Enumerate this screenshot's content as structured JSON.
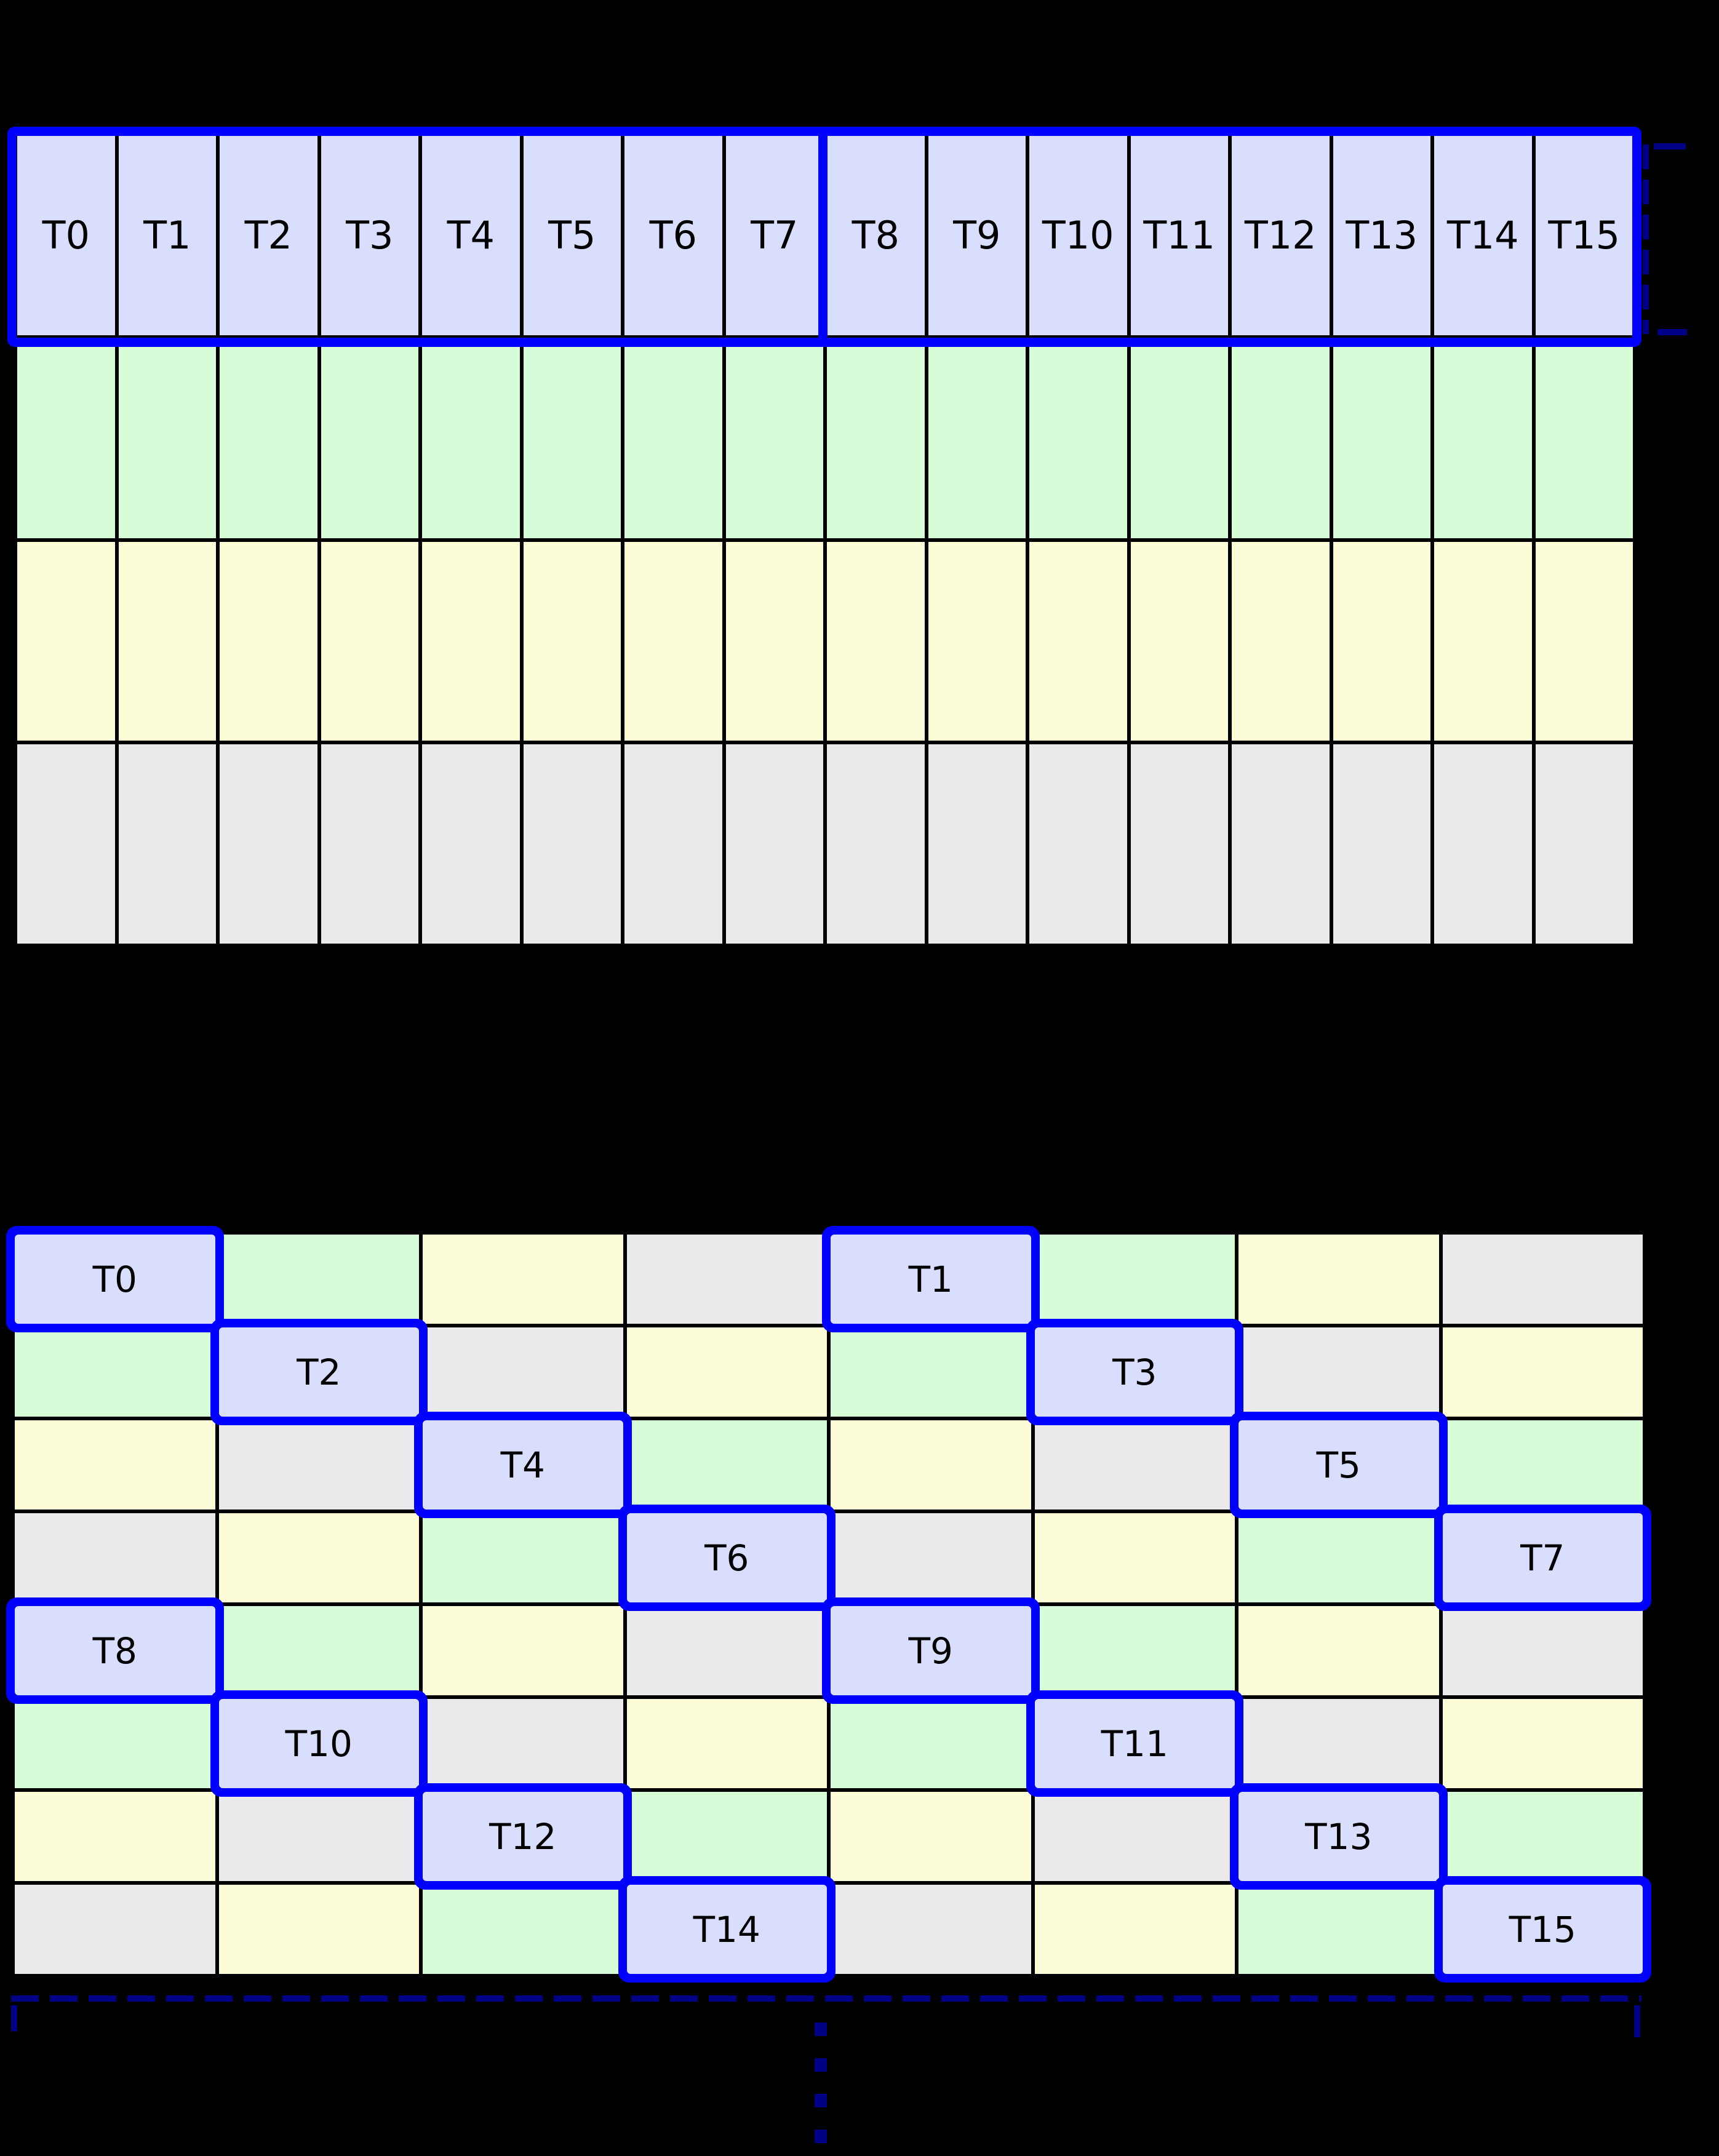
{
  "palette": {
    "background": "#000000",
    "grid_line": "#000000",
    "thread_fill": "#D8DEFB",
    "bank_green": "#D7FCD8",
    "bank_yellow": "#FCFDD7",
    "bank_gray": "#EAEAEC",
    "highlight_outline": "#0000FE",
    "bracket_navy": "#000087",
    "label_color": "#000000"
  },
  "top_grid": {
    "columns": 16,
    "rows": 4,
    "thread_labels": [
      "T0",
      "T1",
      "T2",
      "T3",
      "T4",
      "T5",
      "T6",
      "T7",
      "T8",
      "T9",
      "T10",
      "T11",
      "T12",
      "T13",
      "T14",
      "T15"
    ],
    "row_fills": [
      "thread_fill",
      "bank_green",
      "bank_yellow",
      "bank_gray"
    ],
    "half_warp_divider_after_column": 8
  },
  "bottom_grid": {
    "rows": 8,
    "columns": 8,
    "cells": [
      [
        {
          "fill": "thread_fill",
          "label": "T0",
          "highlight": true
        },
        {
          "fill": "bank_green",
          "label": "",
          "highlight": false
        },
        {
          "fill": "bank_yellow",
          "label": "",
          "highlight": false
        },
        {
          "fill": "bank_gray",
          "label": "",
          "highlight": false
        },
        {
          "fill": "thread_fill",
          "label": "T1",
          "highlight": true
        },
        {
          "fill": "bank_green",
          "label": "",
          "highlight": false
        },
        {
          "fill": "bank_yellow",
          "label": "",
          "highlight": false
        },
        {
          "fill": "bank_gray",
          "label": "",
          "highlight": false
        }
      ],
      [
        {
          "fill": "bank_green",
          "label": "",
          "highlight": false
        },
        {
          "fill": "thread_fill",
          "label": "T2",
          "highlight": true
        },
        {
          "fill": "bank_gray",
          "label": "",
          "highlight": false
        },
        {
          "fill": "bank_yellow",
          "label": "",
          "highlight": false
        },
        {
          "fill": "bank_green",
          "label": "",
          "highlight": false
        },
        {
          "fill": "thread_fill",
          "label": "T3",
          "highlight": true
        },
        {
          "fill": "bank_gray",
          "label": "",
          "highlight": false
        },
        {
          "fill": "bank_yellow",
          "label": "",
          "highlight": false
        }
      ],
      [
        {
          "fill": "bank_yellow",
          "label": "",
          "highlight": false
        },
        {
          "fill": "bank_gray",
          "label": "",
          "highlight": false
        },
        {
          "fill": "thread_fill",
          "label": "T4",
          "highlight": true
        },
        {
          "fill": "bank_green",
          "label": "",
          "highlight": false
        },
        {
          "fill": "bank_yellow",
          "label": "",
          "highlight": false
        },
        {
          "fill": "bank_gray",
          "label": "",
          "highlight": false
        },
        {
          "fill": "thread_fill",
          "label": "T5",
          "highlight": true
        },
        {
          "fill": "bank_green",
          "label": "",
          "highlight": false
        }
      ],
      [
        {
          "fill": "bank_gray",
          "label": "",
          "highlight": false
        },
        {
          "fill": "bank_yellow",
          "label": "",
          "highlight": false
        },
        {
          "fill": "bank_green",
          "label": "",
          "highlight": false
        },
        {
          "fill": "thread_fill",
          "label": "T6",
          "highlight": true
        },
        {
          "fill": "bank_gray",
          "label": "",
          "highlight": false
        },
        {
          "fill": "bank_yellow",
          "label": "",
          "highlight": false
        },
        {
          "fill": "bank_green",
          "label": "",
          "highlight": false
        },
        {
          "fill": "thread_fill",
          "label": "T7",
          "highlight": true
        }
      ],
      [
        {
          "fill": "thread_fill",
          "label": "T8",
          "highlight": true
        },
        {
          "fill": "bank_green",
          "label": "",
          "highlight": false
        },
        {
          "fill": "bank_yellow",
          "label": "",
          "highlight": false
        },
        {
          "fill": "bank_gray",
          "label": "",
          "highlight": false
        },
        {
          "fill": "thread_fill",
          "label": "T9",
          "highlight": true
        },
        {
          "fill": "bank_green",
          "label": "",
          "highlight": false
        },
        {
          "fill": "bank_yellow",
          "label": "",
          "highlight": false
        },
        {
          "fill": "bank_gray",
          "label": "",
          "highlight": false
        }
      ],
      [
        {
          "fill": "bank_green",
          "label": "",
          "highlight": false
        },
        {
          "fill": "thread_fill",
          "label": "T10",
          "highlight": true
        },
        {
          "fill": "bank_gray",
          "label": "",
          "highlight": false
        },
        {
          "fill": "bank_yellow",
          "label": "",
          "highlight": false
        },
        {
          "fill": "bank_green",
          "label": "",
          "highlight": false
        },
        {
          "fill": "thread_fill",
          "label": "T11",
          "highlight": true
        },
        {
          "fill": "bank_gray",
          "label": "",
          "highlight": false
        },
        {
          "fill": "bank_yellow",
          "label": "",
          "highlight": false
        }
      ],
      [
        {
          "fill": "bank_yellow",
          "label": "",
          "highlight": false
        },
        {
          "fill": "bank_gray",
          "label": "",
          "highlight": false
        },
        {
          "fill": "thread_fill",
          "label": "T12",
          "highlight": true
        },
        {
          "fill": "bank_green",
          "label": "",
          "highlight": false
        },
        {
          "fill": "bank_yellow",
          "label": "",
          "highlight": false
        },
        {
          "fill": "bank_gray",
          "label": "",
          "highlight": false
        },
        {
          "fill": "thread_fill",
          "label": "T13",
          "highlight": true
        },
        {
          "fill": "bank_green",
          "label": "",
          "highlight": false
        }
      ],
      [
        {
          "fill": "bank_gray",
          "label": "",
          "highlight": false
        },
        {
          "fill": "bank_yellow",
          "label": "",
          "highlight": false
        },
        {
          "fill": "bank_green",
          "label": "",
          "highlight": false
        },
        {
          "fill": "thread_fill",
          "label": "T14",
          "highlight": true
        },
        {
          "fill": "bank_gray",
          "label": "",
          "highlight": false
        },
        {
          "fill": "bank_yellow",
          "label": "",
          "highlight": false
        },
        {
          "fill": "bank_green",
          "label": "",
          "highlight": false
        },
        {
          "fill": "thread_fill",
          "label": "T15",
          "highlight": true
        }
      ]
    ]
  },
  "annotations": {
    "thread_row_bracket": "dashed-right-bracket",
    "bottom_span_bracket": "dashed-top-bracket",
    "continuation_dots_count": 4
  }
}
